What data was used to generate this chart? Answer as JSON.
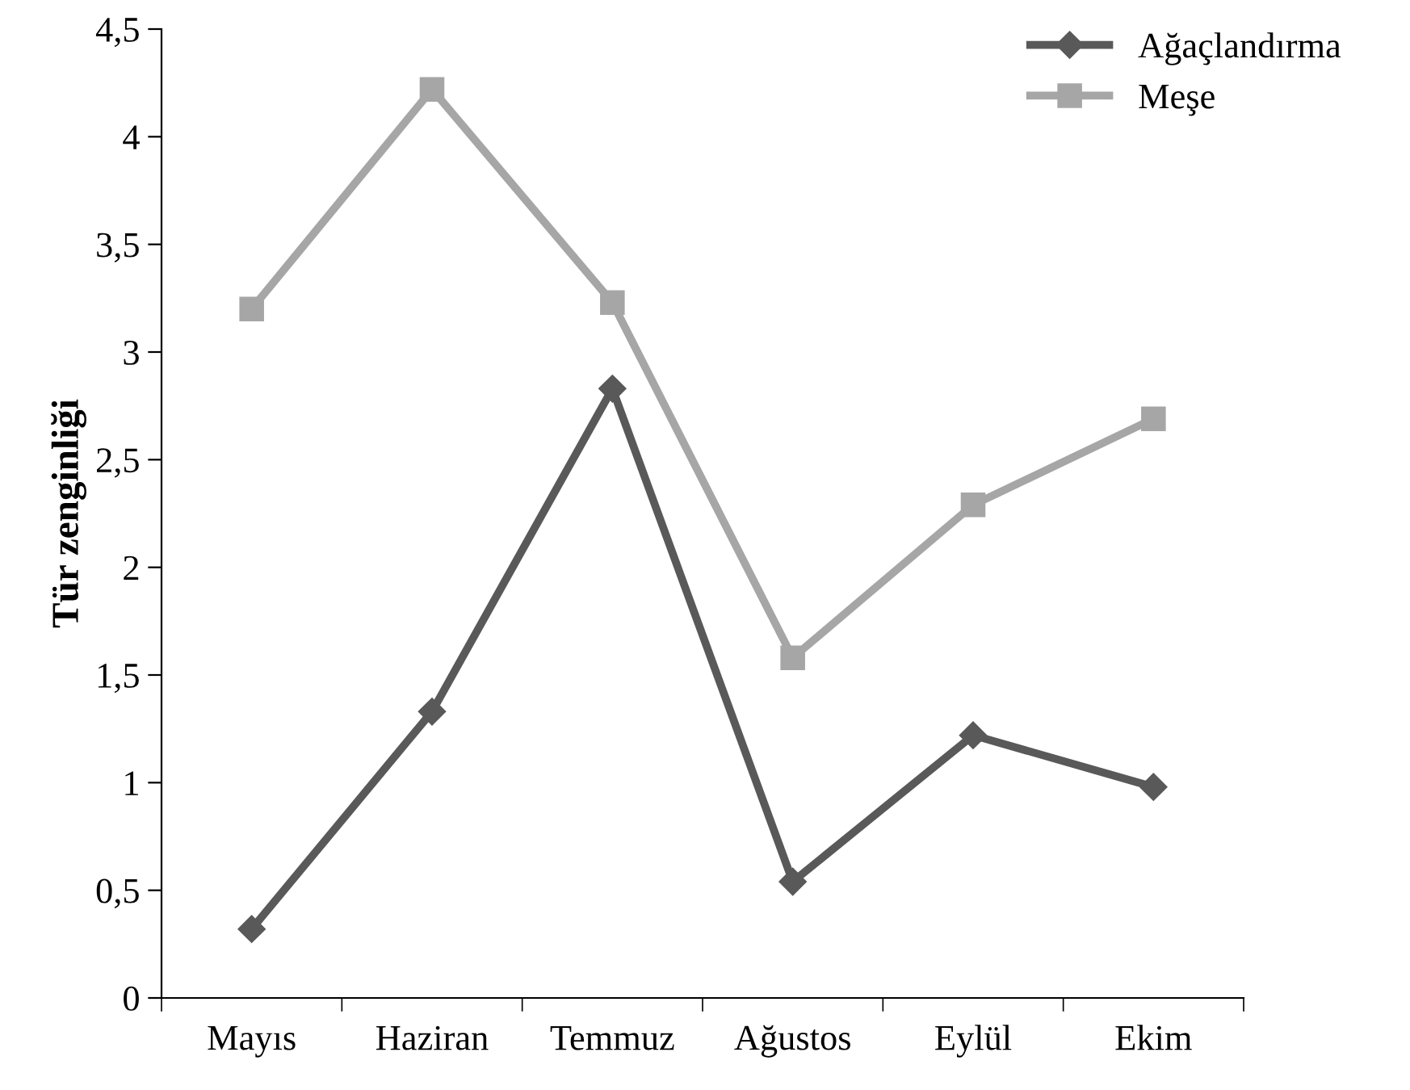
{
  "chart_data": {
    "type": "line",
    "ylabel": "Tür zenginliği",
    "categories": [
      "Mayıs",
      "Haziran",
      "Temmuz",
      "Ağustos",
      "Eylül",
      "Ekim"
    ],
    "series": [
      {
        "name": "Ağaçlandırma",
        "color": "#595959",
        "marker": "diamond",
        "values": [
          0.32,
          1.33,
          2.83,
          0.54,
          1.22,
          0.98
        ]
      },
      {
        "name": "Meşe",
        "color": "#a6a6a6",
        "marker": "square",
        "values": [
          3.2,
          4.22,
          3.23,
          1.58,
          2.29,
          2.69
        ]
      }
    ],
    "ylim": [
      0,
      4.5
    ],
    "yticks": [
      0,
      {
        "value": 0.5,
        "label": "0,5"
      },
      1,
      {
        "value": 1.5,
        "label": "1,5"
      },
      2,
      {
        "value": 2.5,
        "label": "2,5"
      },
      3,
      {
        "value": 3.5,
        "label": "3,5"
      },
      4,
      {
        "value": 4.5,
        "label": "4,5"
      }
    ],
    "grid": false,
    "legend": "top right",
    "line_style": "solid"
  }
}
